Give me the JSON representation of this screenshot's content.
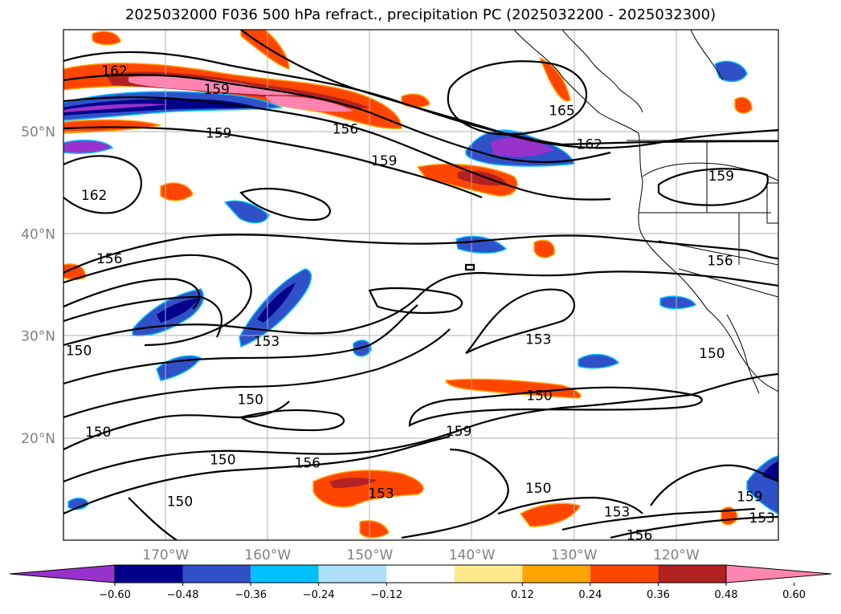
{
  "title": "2025032000 F036 500 hPa refract., precipitation PC (2025032200 - 2025032300)",
  "map": {
    "lat_range": [
      10,
      60
    ],
    "lon_range": [
      -180,
      -110
    ],
    "lat_ticks": [
      {
        "value": 20,
        "label": "20°N"
      },
      {
        "value": 30,
        "label": "30°N"
      },
      {
        "value": 40,
        "label": "40°N"
      },
      {
        "value": 50,
        "label": "50°N"
      }
    ],
    "lon_ticks": [
      {
        "value": -170,
        "label": "170°W"
      },
      {
        "value": -160,
        "label": "160°W"
      },
      {
        "value": -150,
        "label": "150°W"
      },
      {
        "value": -140,
        "label": "140°W"
      },
      {
        "value": -130,
        "label": "130°W"
      },
      {
        "value": -120,
        "label": "120°W"
      }
    ],
    "grid": true,
    "contour_labels": [
      {
        "text": "162",
        "lon": -175,
        "lat": 56
      },
      {
        "text": "159",
        "lon": -165,
        "lat": 54.2
      },
      {
        "text": "159",
        "lon": -164.8,
        "lat": 49.9
      },
      {
        "text": "156",
        "lon": -152.4,
        "lat": 50.3
      },
      {
        "text": "159",
        "lon": -148.6,
        "lat": 47.2
      },
      {
        "text": "165",
        "lon": -131.2,
        "lat": 52.1
      },
      {
        "text": "162",
        "lon": -128.5,
        "lat": 48.8
      },
      {
        "text": "162",
        "lon": -177,
        "lat": 43.8
      },
      {
        "text": "159",
        "lon": -115.6,
        "lat": 45.7
      },
      {
        "text": "156",
        "lon": -175.5,
        "lat": 37.6
      },
      {
        "text": "156",
        "lon": -115.7,
        "lat": 37.4
      },
      {
        "text": "153",
        "lon": -160.1,
        "lat": 29.5
      },
      {
        "text": "153",
        "lon": -133.5,
        "lat": 29.7
      },
      {
        "text": "150",
        "lon": -178.5,
        "lat": 28.6
      },
      {
        "text": "150",
        "lon": -116.5,
        "lat": 28.3
      },
      {
        "text": "150",
        "lon": -161.7,
        "lat": 23.8
      },
      {
        "text": "150",
        "lon": -133.4,
        "lat": 24.2
      },
      {
        "text": "159",
        "lon": -141.3,
        "lat": 20.7
      },
      {
        "text": "150",
        "lon": -176.6,
        "lat": 20.6
      },
      {
        "text": "150",
        "lon": -164.4,
        "lat": 17.9
      },
      {
        "text": "156",
        "lon": -156.1,
        "lat": 17.6
      },
      {
        "text": "150",
        "lon": -168.6,
        "lat": 13.8
      },
      {
        "text": "153",
        "lon": -148.9,
        "lat": 14.6
      },
      {
        "text": "150",
        "lon": -133.5,
        "lat": 15.1
      },
      {
        "text": "153",
        "lon": -125.8,
        "lat": 12.8
      },
      {
        "text": "156",
        "lon": -123.6,
        "lat": 10.5
      },
      {
        "text": "159",
        "lon": -112.8,
        "lat": 14.3
      },
      {
        "text": "153",
        "lon": -111.6,
        "lat": 12.2
      }
    ]
  },
  "colorbar": {
    "colors": [
      "#9932cc",
      "#00008b",
      "#3050c8",
      "#00bfff",
      "#aee0f8",
      "#ffffff",
      "#ffe98c",
      "#ffa500",
      "#ff4500",
      "#b22222",
      "#ff85b0"
    ],
    "ticks": [
      "−0.60",
      "−0.48",
      "−0.36",
      "−0.24",
      "−0.12",
      "0.12",
      "0.24",
      "0.36",
      "0.48",
      "0.60"
    ],
    "extend": "both"
  }
}
